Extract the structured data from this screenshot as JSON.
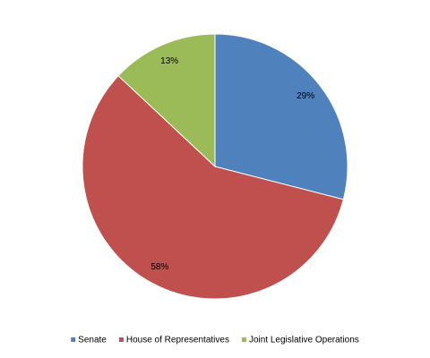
{
  "chart_data": {
    "type": "pie",
    "categories": [
      "Senate",
      "House of Representatives",
      "Joint Legislative Operations"
    ],
    "values": [
      29,
      58,
      13
    ],
    "value_labels": [
      "29%",
      "58%",
      "13%"
    ],
    "colors": [
      "#4f81bd",
      "#c0504d",
      "#9bbb59"
    ],
    "legend": "bottom"
  }
}
